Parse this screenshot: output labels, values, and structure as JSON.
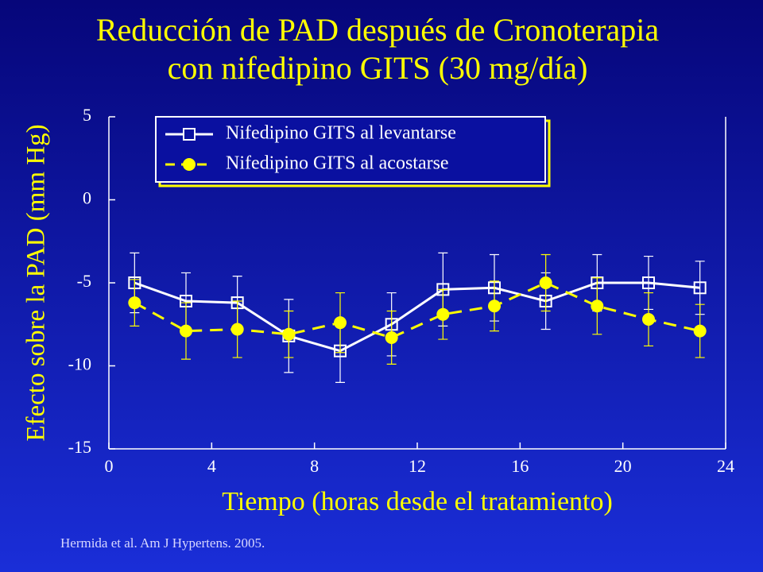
{
  "chart_data": {
    "type": "line",
    "title": [
      "Reducción de PAD después de Cronoterapia",
      "con nifedipino GITS (30 mg/día)"
    ],
    "x_label": "Tiempo (horas desde el tratamiento)",
    "y_label": "Efecto sobre la PAD (mm Hg)",
    "source": "Hermida et al. Am J Hypertens. 2005.",
    "x": [
      1,
      3,
      5,
      7,
      9,
      11,
      13,
      15,
      17,
      19,
      21,
      23
    ],
    "series": [
      {
        "name": "Nifedipino GITS al levantarse",
        "color": "#ffffff",
        "marker": "square",
        "dashed": false,
        "values": [
          -5.0,
          -6.1,
          -6.2,
          -8.2,
          -9.1,
          -7.5,
          -5.4,
          -5.3,
          -6.1,
          -5.0,
          -5.0,
          -5.3
        ],
        "errors": [
          1.8,
          1.7,
          1.6,
          2.2,
          1.9,
          1.9,
          2.2,
          2.0,
          1.7,
          1.7,
          1.6,
          1.6
        ]
      },
      {
        "name": "Nifedipino GITS al acostarse",
        "color": "#ffff00",
        "marker": "circle",
        "dashed": true,
        "values": [
          -6.2,
          -7.9,
          -7.8,
          -8.1,
          -7.4,
          -8.3,
          -6.9,
          -6.4,
          -5.0,
          -6.4,
          -7.2,
          -7.9
        ],
        "errors": [
          1.4,
          1.7,
          1.7,
          1.4,
          1.8,
          1.6,
          1.5,
          1.5,
          1.7,
          1.7,
          1.6,
          1.6
        ]
      }
    ],
    "xlim": [
      0,
      24
    ],
    "xticks": [
      0,
      4,
      8,
      12,
      16,
      20,
      24
    ],
    "ylim": [
      -15,
      5
    ],
    "yticks": [
      5,
      0,
      -5,
      -10,
      -15
    ],
    "legend": "top-left"
  }
}
